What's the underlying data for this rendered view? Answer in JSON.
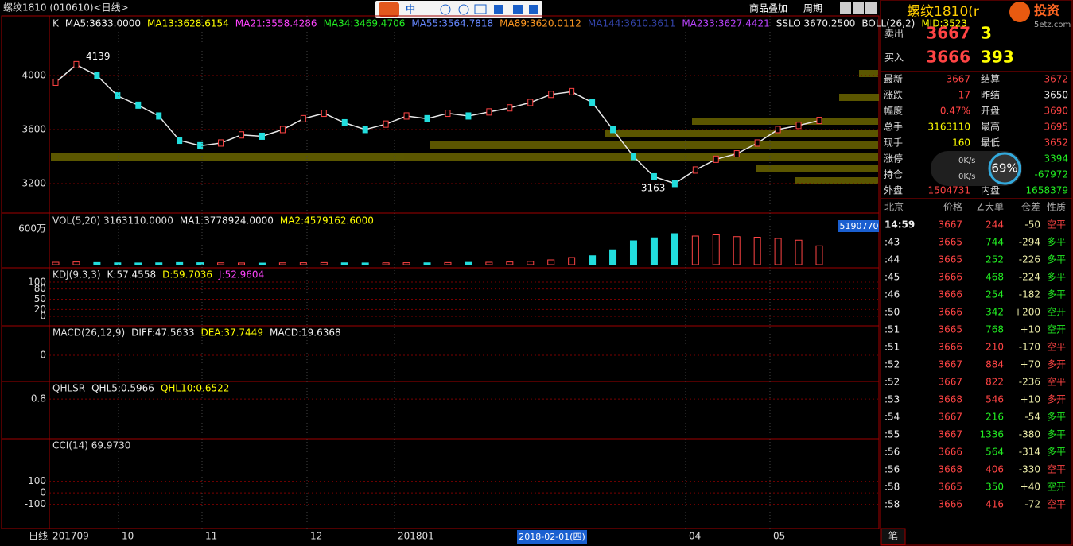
{
  "header": {
    "title": "螺纹1810 (010610)<日线>",
    "toolbar": "中",
    "overlay": "商品叠加",
    "period": "周期"
  },
  "chart_data": [
    {
      "type": "line",
      "color": "#e8e8e8",
      "legend": [
        {
          "text": "K",
          "color": "#dddddd"
        },
        {
          "text": "MA5:3633.0000",
          "color": "#eeeeee"
        },
        {
          "text": "MA13:3628.6154",
          "color": "#ffff00"
        },
        {
          "text": "MA21:3558.4286",
          "color": "#ff44ff"
        },
        {
          "text": "MA34:3469.4706",
          "color": "#22ee22"
        },
        {
          "text": "MA55:3564.7818",
          "color": "#6688ff"
        },
        {
          "text": "MA89:3620.0112",
          "color": "#ff9922"
        },
        {
          "text": "MA144:3610.3611",
          "color": "#3344aa"
        },
        {
          "text": "MA233:3627.4421",
          "color": "#bb44ff"
        },
        {
          "text": "SSLO 3670.2500",
          "color": "#eeeeee"
        },
        {
          "text": "BOLL(26,2)",
          "color": "#eeeeee"
        },
        {
          "text": "MID:3523",
          "color": "#ffff00"
        }
      ],
      "values": [
        3950,
        4080,
        4000,
        3850,
        3780,
        3700,
        3520,
        3480,
        3500,
        3560,
        3550,
        3600,
        3680,
        3720,
        3650,
        3600,
        3640,
        3700,
        3680,
        3720,
        3700,
        3730,
        3760,
        3800,
        3860,
        3880,
        3800,
        3600,
        3400,
        3250,
        3200,
        3300,
        3380,
        3420,
        3500,
        3600,
        3630,
        3667
      ],
      "high": 4139,
      "low": 3163,
      "ylim": [
        2982,
        4441
      ],
      "yticks": [
        3200,
        3600,
        4000
      ],
      "grid": true
    },
    {
      "type": "bar",
      "title": "VOL(5,20)",
      "legend": [
        {
          "text": "VOL(5,20) 3163110.0000",
          "color": "#dddddd"
        },
        {
          "text": "MA1:3778924.0000",
          "color": "#eeeeee"
        },
        {
          "text": "MA2:4579162.6000",
          "color": "#ffff00"
        }
      ],
      "up_color": "#ff4444",
      "down_color": "#22dddd",
      "values": [
        40,
        45,
        35,
        30,
        28,
        30,
        35,
        32,
        30,
        28,
        26,
        30,
        32,
        35,
        30,
        28,
        30,
        32,
        30,
        35,
        38,
        40,
        45,
        55,
        80,
        120,
        150,
        250,
        400,
        450,
        520,
        480,
        500,
        470,
        460,
        440,
        410,
        316
      ],
      "ylim": [
        0,
        840
      ],
      "yticks": [
        {
          "value": 600,
          "label": "600万"
        }
      ],
      "last_label": "5190770"
    }
  ],
  "indicators": [
    {
      "legend": [
        {
          "text": "KDJ(9,3,3)",
          "color": "#dddddd"
        },
        {
          "text": "K:57.4558",
          "color": "#eeeeee"
        },
        {
          "text": "D:59.7036",
          "color": "#ffff00"
        },
        {
          "text": "J:52.9604",
          "color": "#ff44ff"
        }
      ],
      "ylim": [
        -28,
        142
      ],
      "yticks": [
        100,
        80,
        50,
        20,
        0
      ]
    },
    {
      "legend": [
        {
          "text": "MACD(26,12,9)",
          "color": "#dddddd"
        },
        {
          "text": "DIFF:47.5633",
          "color": "#eeeeee"
        },
        {
          "text": "DEA:37.7449",
          "color": "#ffff00"
        },
        {
          "text": "MACD:19.6368",
          "color": "#eeeeee"
        }
      ],
      "ylim": [
        -80,
        90
      ],
      "yticks": [
        0
      ]
    },
    {
      "legend": [
        {
          "text": "QHLSR",
          "color": "#dddddd"
        },
        {
          "text": "QHL5:0.5966",
          "color": "#eeeeee"
        },
        {
          "text": "QHL10:0.6522",
          "color": "#ffff00"
        }
      ],
      "ylim": [
        -0.1,
        1.2
      ],
      "yticks": [
        0.8
      ]
    },
    {
      "legend": [
        {
          "text": "CCI(14) 69.9730",
          "color": "#dddddd"
        }
      ],
      "ylim": [
        -310,
        470
      ],
      "yticks": [
        100,
        0,
        -100
      ]
    }
  ],
  "x_axis": {
    "period": "日线",
    "labels": [
      "201709",
      "10",
      "11",
      "12",
      "201801",
      "04",
      "05"
    ],
    "cursor": "2018-02-01(四)"
  },
  "quote": {
    "title": "螺纹1810(r",
    "logo": "投资",
    "site": "5etz.com",
    "ask_label": "卖出",
    "ask": "3667",
    "ask_vol": "3",
    "bid_label": "买入",
    "bid": "3666",
    "bid_vol": "393",
    "rows": [
      {
        "cells": [
          "最新",
          "3667",
          "结算",
          "3672"
        ],
        "colors": [
          "#ff4444",
          "#ff4444"
        ]
      },
      {
        "cells": [
          "涨跌",
          "17",
          "昨结",
          "3650"
        ],
        "colors": [
          "#ff4444",
          "#eeeeee"
        ]
      },
      {
        "cells": [
          "幅度",
          "0.47%",
          "开盘",
          "3690"
        ],
        "colors": [
          "#ff4444",
          "#ff4444"
        ]
      },
      {
        "cells": [
          "总手",
          "3163110",
          "最高",
          "3695"
        ],
        "colors": [
          "#ffff00",
          "#ff4444"
        ]
      },
      {
        "cells": [
          "现手",
          "160",
          "最低",
          "3652"
        ],
        "colors": [
          "#ffff00",
          "#ff4444"
        ]
      },
      {
        "cells": [
          "涨停",
          null,
          null,
          "3394"
        ],
        "colors": [
          "#ff4444",
          "#22ee22"
        ]
      },
      {
        "cells": [
          "持仓",
          null,
          null,
          "-67972"
        ],
        "colors": [
          "#ffff00",
          "#22ee22"
        ]
      },
      {
        "cells": [
          "外盘",
          "1504731",
          "内盘",
          "1658379"
        ],
        "colors": [
          "#ff4444",
          "#22ee22"
        ]
      }
    ],
    "meter": "69%",
    "speed_up": "0K/s",
    "speed_down": "0K/s"
  },
  "ticks": {
    "columns": [
      "北京",
      "价格",
      "∠大单",
      "仓差",
      "性质"
    ],
    "rows": [
      {
        "cells": [
          "14:59",
          "3667",
          "244",
          "-50",
          "空平"
        ],
        "colors": [
          "#ff4444",
          "#ff4444"
        ]
      },
      {
        "cells": [
          ":43",
          "3665",
          "744",
          "-294",
          "多平"
        ],
        "colors": [
          "#22ee22",
          "#22ee22"
        ]
      },
      {
        "cells": [
          ":44",
          "3665",
          "252",
          "-226",
          "多平"
        ],
        "colors": [
          "#22ee22",
          "#22ee22"
        ]
      },
      {
        "cells": [
          ":45",
          "3666",
          "468",
          "-224",
          "多平"
        ],
        "colors": [
          "#22ee22",
          "#22ee22"
        ]
      },
      {
        "cells": [
          ":46",
          "3666",
          "254",
          "-182",
          "多平"
        ],
        "colors": [
          "#22ee22",
          "#22ee22"
        ]
      },
      {
        "cells": [
          ":50",
          "3666",
          "342",
          "+200",
          "空开"
        ],
        "colors": [
          "#22ee22",
          "#22ee22"
        ]
      },
      {
        "cells": [
          ":51",
          "3665",
          "768",
          "+10",
          "空开"
        ],
        "colors": [
          "#22ee22",
          "#22ee22"
        ]
      },
      {
        "cells": [
          ":51",
          "3666",
          "210",
          "-170",
          "空平"
        ],
        "colors": [
          "#ff4444",
          "#ff4444"
        ]
      },
      {
        "cells": [
          ":52",
          "3667",
          "884",
          "+70",
          "多开"
        ],
        "colors": [
          "#ff4444",
          "#ff4444"
        ]
      },
      {
        "cells": [
          ":52",
          "3667",
          "822",
          "-236",
          "空平"
        ],
        "colors": [
          "#ff4444",
          "#ff4444"
        ]
      },
      {
        "cells": [
          ":53",
          "3668",
          "546",
          "+10",
          "多开"
        ],
        "colors": [
          "#ff4444",
          "#ff4444"
        ]
      },
      {
        "cells": [
          ":54",
          "3667",
          "216",
          "-54",
          "多平"
        ],
        "colors": [
          "#22ee22",
          "#22ee22"
        ]
      },
      {
        "cells": [
          ":55",
          "3667",
          "1336",
          "-380",
          "多平"
        ],
        "colors": [
          "#22ee22",
          "#22ee22"
        ]
      },
      {
        "cells": [
          ":56",
          "3666",
          "564",
          "-314",
          "多平"
        ],
        "colors": [
          "#22ee22",
          "#22ee22"
        ]
      },
      {
        "cells": [
          ":56",
          "3668",
          "406",
          "-330",
          "空平"
        ],
        "colors": [
          "#ff4444",
          "#ff4444"
        ]
      },
      {
        "cells": [
          ":58",
          "3665",
          "350",
          "+40",
          "空开"
        ],
        "colors": [
          "#22ee22",
          "#22ee22"
        ]
      },
      {
        "cells": [
          ":58",
          "3666",
          "416",
          "-72",
          "空平"
        ],
        "colors": [
          "#ff4444",
          "#ff4444"
        ]
      }
    ],
    "tab": "笔"
  }
}
